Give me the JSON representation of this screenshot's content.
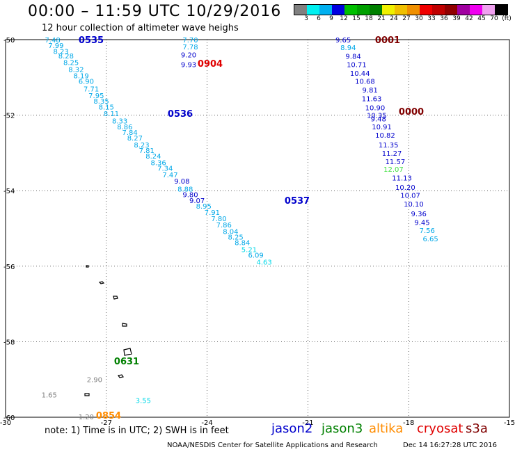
{
  "title": "00:00 – 11:59 UTC 10/29/2016",
  "subtitle": "12 hour collection of altimeter wave heighs",
  "legend": {
    "colors": [
      "#808080",
      "#00f0f0",
      "#00b0f0",
      "#0000e0",
      "#00c000",
      "#00a000",
      "#008000",
      "#f0f000",
      "#f0c000",
      "#f09000",
      "#f00000",
      "#c00000",
      "#900000",
      "#a000a0",
      "#f000f0",
      "#f0a0f0",
      "#000000"
    ],
    "labels": [
      "3",
      "6",
      "9",
      "12",
      "15",
      "18",
      "21",
      "24",
      "27",
      "30",
      "33",
      "36",
      "39",
      "42",
      "45",
      "70",
      "(ft)"
    ]
  },
  "axes": {
    "y_labels": [
      "-50",
      "-52",
      "-54",
      "-56",
      "-58",
      "-60"
    ],
    "x_labels": [
      "-30",
      "-27",
      "-24",
      "-21",
      "-18",
      "-15"
    ]
  },
  "tracks": [
    {
      "time": "0535",
      "satellite": "jason2",
      "color": "#0000cc"
    },
    {
      "time": "0536",
      "satellite": "jason2",
      "color": "#0000cc"
    },
    {
      "time": "0537",
      "satellite": "jason2",
      "color": "#0000cc"
    },
    {
      "time": "0904",
      "satellite": "cryosat",
      "color": "#e00000"
    },
    {
      "time": "0001",
      "satellite": "s3a",
      "color": "#800000"
    },
    {
      "time": "0000",
      "satellite": "s3a",
      "color": "#800000"
    },
    {
      "time": "0631",
      "satellite": "jason3",
      "color": "#008000"
    },
    {
      "time": "0854",
      "satellite": "altika",
      "color": "#ff8c00"
    }
  ],
  "chart_data": {
    "type": "scatter",
    "xlim": [
      -30,
      -15
    ],
    "ylim": [
      -60,
      -50
    ],
    "xlabel": "",
    "ylabel": "",
    "units": "ft",
    "series": [
      {
        "name": "jason2",
        "points": [
          {
            "lon": -28.6,
            "lat": -50.0,
            "swh": "7.48"
          },
          {
            "lon": -28.5,
            "lat": -50.15,
            "swh": "7.99"
          },
          {
            "lon": -28.35,
            "lat": -50.3,
            "swh": "8.23"
          },
          {
            "lon": -28.2,
            "lat": -50.42,
            "swh": "8.28"
          },
          {
            "lon": -28.05,
            "lat": -50.6,
            "swh": "8.25"
          },
          {
            "lon": -27.9,
            "lat": -50.78,
            "swh": "8.32"
          },
          {
            "lon": -27.75,
            "lat": -50.95,
            "swh": "8.19"
          },
          {
            "lon": -27.6,
            "lat": -51.1,
            "swh": "6.90"
          },
          {
            "lon": -27.45,
            "lat": -51.3,
            "swh": "7.71"
          },
          {
            "lon": -27.3,
            "lat": -51.47,
            "swh": "7.95"
          },
          {
            "lon": -27.15,
            "lat": -51.62,
            "swh": "8.35"
          },
          {
            "lon": -27.0,
            "lat": -51.78,
            "swh": "8.15"
          },
          {
            "lon": -26.85,
            "lat": -51.95,
            "swh": "8.11"
          },
          {
            "lon": -26.6,
            "lat": -52.15,
            "swh": "8.33"
          },
          {
            "lon": -26.45,
            "lat": -52.3,
            "swh": "8.86"
          },
          {
            "lon": -26.3,
            "lat": -52.45,
            "swh": "7.84"
          },
          {
            "lon": -26.15,
            "lat": -52.6,
            "swh": "8.27"
          },
          {
            "lon": -25.95,
            "lat": -52.78,
            "swh": "8.23"
          },
          {
            "lon": -25.8,
            "lat": -52.93,
            "swh": "7.81"
          },
          {
            "lon": -25.6,
            "lat": -53.08,
            "swh": "8.24"
          },
          {
            "lon": -25.45,
            "lat": -53.25,
            "swh": "8.36"
          },
          {
            "lon": -25.25,
            "lat": -53.4,
            "swh": "7.34"
          },
          {
            "lon": -25.1,
            "lat": -53.57,
            "swh": "7.47"
          },
          {
            "lon": -24.75,
            "lat": -53.74,
            "swh": "9.08"
          },
          {
            "lon": -24.65,
            "lat": -53.95,
            "swh": "8.88"
          },
          {
            "lon": -24.5,
            "lat": -54.1,
            "swh": "9.80"
          },
          {
            "lon": -24.3,
            "lat": -54.25,
            "swh": "9.07"
          },
          {
            "lon": -24.1,
            "lat": -54.4,
            "swh": "8.95"
          },
          {
            "lon": -23.85,
            "lat": -54.57,
            "swh": "7.91"
          },
          {
            "lon": -23.65,
            "lat": -54.73,
            "swh": "7.80"
          },
          {
            "lon": -23.5,
            "lat": -54.9,
            "swh": "7.86"
          },
          {
            "lon": -23.3,
            "lat": -55.07,
            "swh": "8.04"
          },
          {
            "lon": -23.15,
            "lat": -55.22,
            "swh": "8.25"
          },
          {
            "lon": -22.95,
            "lat": -55.37,
            "swh": "8.84"
          },
          {
            "lon": -22.75,
            "lat": -55.55,
            "swh": "5.21"
          },
          {
            "lon": -22.55,
            "lat": -55.7,
            "swh": "6.09"
          },
          {
            "lon": -22.3,
            "lat": -55.88,
            "swh": "4.63"
          }
        ]
      },
      {
        "name": "cryosat",
        "points": [
          {
            "lon": -24.5,
            "lat": -50.0,
            "swh": "7.70"
          },
          {
            "lon": -24.5,
            "lat": -50.18,
            "swh": "7.78"
          },
          {
            "lon": -24.55,
            "lat": -50.4,
            "swh": "9.20"
          },
          {
            "lon": -24.55,
            "lat": -50.65,
            "swh": "9.93"
          }
        ]
      },
      {
        "name": "s3a",
        "points": [
          {
            "lon": -19.95,
            "lat": -50.0,
            "swh": "9.65"
          },
          {
            "lon": -19.8,
            "lat": -50.2,
            "swh": "8.94"
          },
          {
            "lon": -19.65,
            "lat": -50.43,
            "swh": "9.84"
          },
          {
            "lon": -19.55,
            "lat": -50.65,
            "swh": "10.71"
          },
          {
            "lon": -19.45,
            "lat": -50.88,
            "swh": "10.44"
          },
          {
            "lon": -19.3,
            "lat": -51.1,
            "swh": "10.68"
          },
          {
            "lon": -19.15,
            "lat": -51.33,
            "swh": "9.81"
          },
          {
            "lon": -19.1,
            "lat": -51.56,
            "swh": "11.63"
          },
          {
            "lon": -19.0,
            "lat": -51.8,
            "swh": "10.90"
          },
          {
            "lon": -18.95,
            "lat": -52.0,
            "swh": "10.35"
          },
          {
            "lon": -18.9,
            "lat": -52.09,
            "swh": "9.48"
          },
          {
            "lon": -18.8,
            "lat": -52.3,
            "swh": "10.91"
          },
          {
            "lon": -18.7,
            "lat": -52.52,
            "swh": "10.82"
          },
          {
            "lon": -18.6,
            "lat": -52.78,
            "swh": "11.35"
          },
          {
            "lon": -18.5,
            "lat": -53.0,
            "swh": "11.27"
          },
          {
            "lon": -18.4,
            "lat": -53.22,
            "swh": "11.57"
          },
          {
            "lon": -18.45,
            "lat": -53.43,
            "swh": "12.07"
          },
          {
            "lon": -18.2,
            "lat": -53.66,
            "swh": "11.13"
          },
          {
            "lon": -18.1,
            "lat": -53.9,
            "swh": "10.20"
          },
          {
            "lon": -17.95,
            "lat": -54.12,
            "swh": "10.07"
          },
          {
            "lon": -17.85,
            "lat": -54.35,
            "swh": "10.10"
          },
          {
            "lon": -17.7,
            "lat": -54.6,
            "swh": "9.36"
          },
          {
            "lon": -17.6,
            "lat": -54.83,
            "swh": "9.45"
          },
          {
            "lon": -17.45,
            "lat": -55.05,
            "swh": "7.56"
          },
          {
            "lon": -17.35,
            "lat": -55.27,
            "swh": "6.65"
          }
        ]
      },
      {
        "name": "jason3",
        "points": [
          {
            "lon": -27.35,
            "lat": -59.0,
            "swh": "2.90"
          },
          {
            "lon": -28.7,
            "lat": -59.4,
            "swh": "1.65"
          },
          {
            "lon": -25.9,
            "lat": -59.55,
            "swh": "3.55"
          }
        ]
      },
      {
        "name": "altika",
        "points": [
          {
            "lon": -27.6,
            "lat": -59.98,
            "swh": "1.20"
          }
        ]
      }
    ]
  },
  "note": "note: 1) Time is in UTC; 2) SWH is in feet",
  "satellites": [
    {
      "name": "jason2",
      "color": "#0000cc"
    },
    {
      "name": "jason3",
      "color": "#008000"
    },
    {
      "name": "altika",
      "color": "#ff8c00"
    },
    {
      "name": "cryosat",
      "color": "#e00000"
    },
    {
      "name": "s3a",
      "color": "#800000"
    }
  ],
  "footer_left": "NOAA/NESDIS Center for Satellite Applications and Research",
  "footer_right": "Dec 14 16:27:28 UTC 2016"
}
